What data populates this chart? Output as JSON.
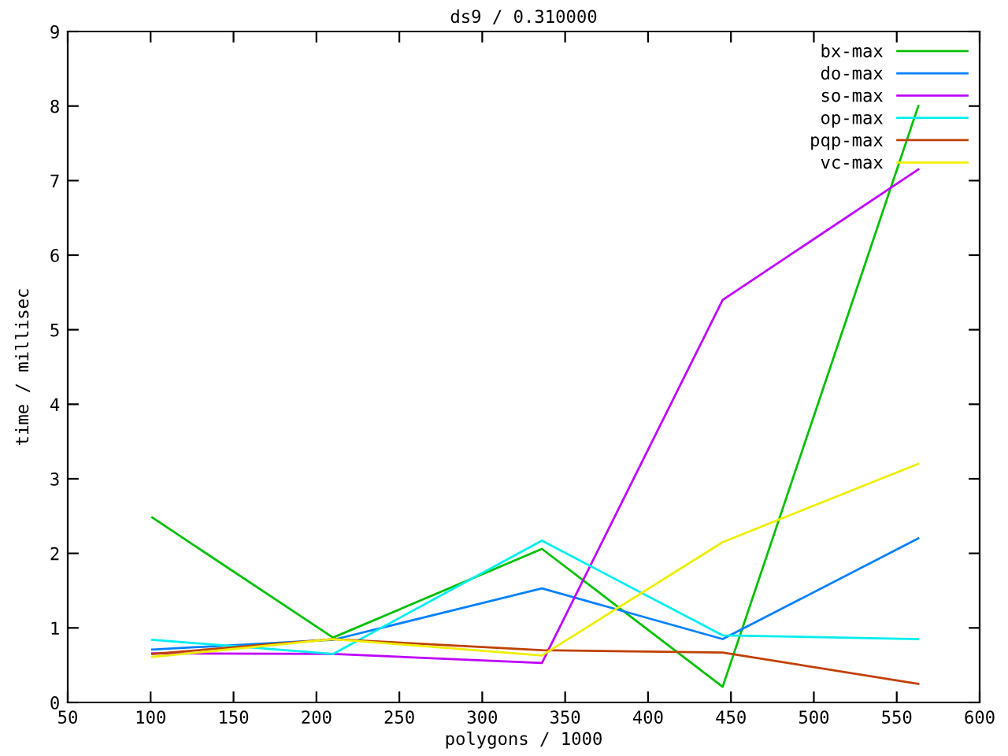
{
  "chart_data": {
    "type": "line",
    "title": "ds9 / 0.310000",
    "xlabel": "polygons / 1000",
    "ylabel": "time / millisec",
    "x": [
      101,
      210,
      336,
      445,
      563
    ],
    "series": [
      {
        "name": "bx-max",
        "color": "#00c000",
        "values": [
          2.48,
          0.87,
          2.06,
          0.21,
          8.0
        ]
      },
      {
        "name": "do-max",
        "color": "#0080ff",
        "values": [
          0.71,
          0.84,
          1.53,
          0.85,
          2.2
        ]
      },
      {
        "name": "so-max",
        "color": "#c000ff",
        "values": [
          0.66,
          0.65,
          0.53,
          5.4,
          7.15
        ]
      },
      {
        "name": "op-max",
        "color": "#00eeee",
        "values": [
          0.84,
          0.65,
          2.17,
          0.9,
          0.85
        ]
      },
      {
        "name": "pqp-max",
        "color": "#c04000",
        "values": [
          0.65,
          0.85,
          0.7,
          0.67,
          0.25
        ]
      },
      {
        "name": "vc-max",
        "color": "#eeee00",
        "values": [
          0.61,
          0.85,
          0.63,
          2.15,
          3.2
        ]
      }
    ],
    "xlim": [
      50,
      600
    ],
    "xticks": [
      50,
      100,
      150,
      200,
      250,
      300,
      350,
      400,
      450,
      500,
      550,
      600
    ],
    "ylim": [
      0,
      9
    ],
    "yticks": [
      0,
      1,
      2,
      3,
      4,
      5,
      6,
      7,
      8,
      9
    ],
    "grid": false,
    "legend": "top right",
    "marker": "none",
    "line_style": "solid"
  }
}
